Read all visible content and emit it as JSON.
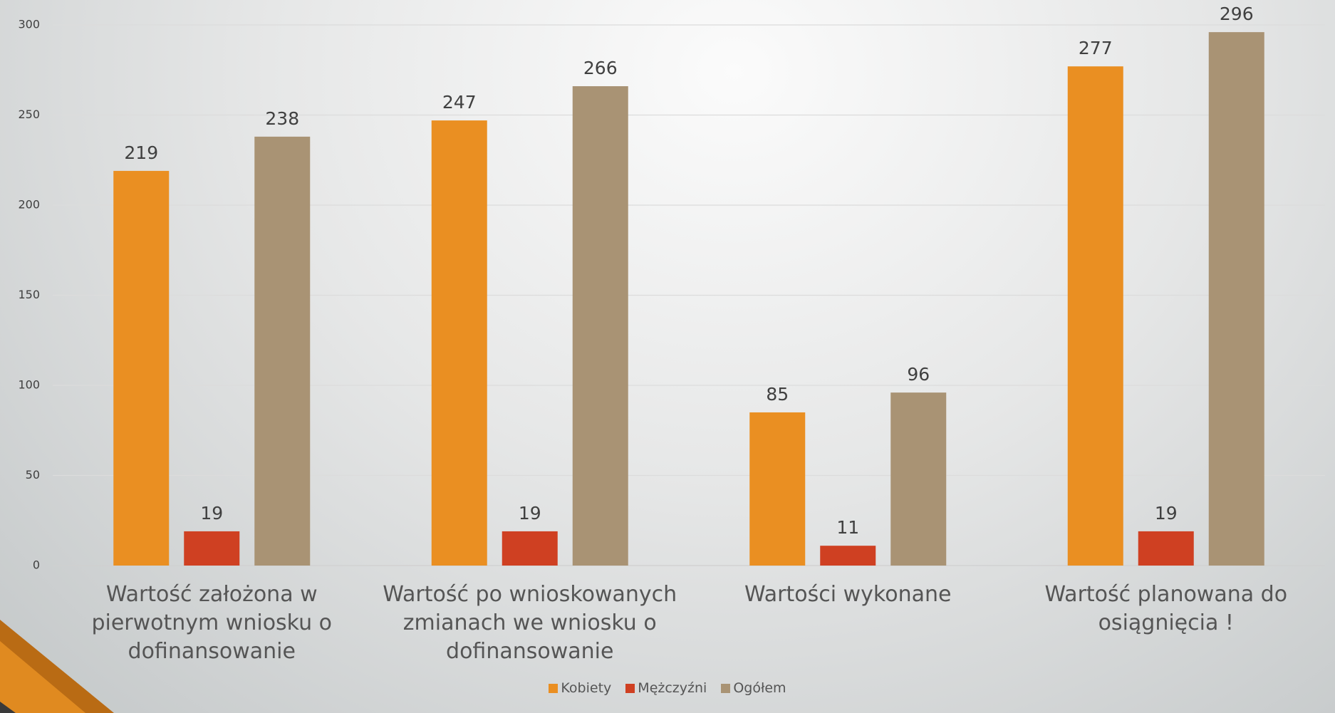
{
  "chart_data": {
    "type": "bar",
    "categories": [
      "Wartość założona w pierwotnym wniosku o dofinansowanie",
      "Wartość po wnioskowanych zmianach we wniosku o dofinansowanie",
      "Wartości wykonane",
      "Wartość planowana do osiągnięcia !"
    ],
    "series": [
      {
        "name": "Kobiety",
        "color": "#ea8f22",
        "values": [
          219,
          247,
          85,
          277
        ]
      },
      {
        "name": "Mężczyźni",
        "color": "#cf4022",
        "values": [
          19,
          19,
          11,
          19
        ]
      },
      {
        "name": "Ogółem",
        "color": "#a99374",
        "values": [
          238,
          266,
          96,
          296
        ]
      }
    ],
    "ylim": [
      0,
      300
    ],
    "yticks": [
      0,
      50,
      100,
      150,
      200,
      250,
      300
    ],
    "grid": true,
    "legend": "bottom"
  }
}
